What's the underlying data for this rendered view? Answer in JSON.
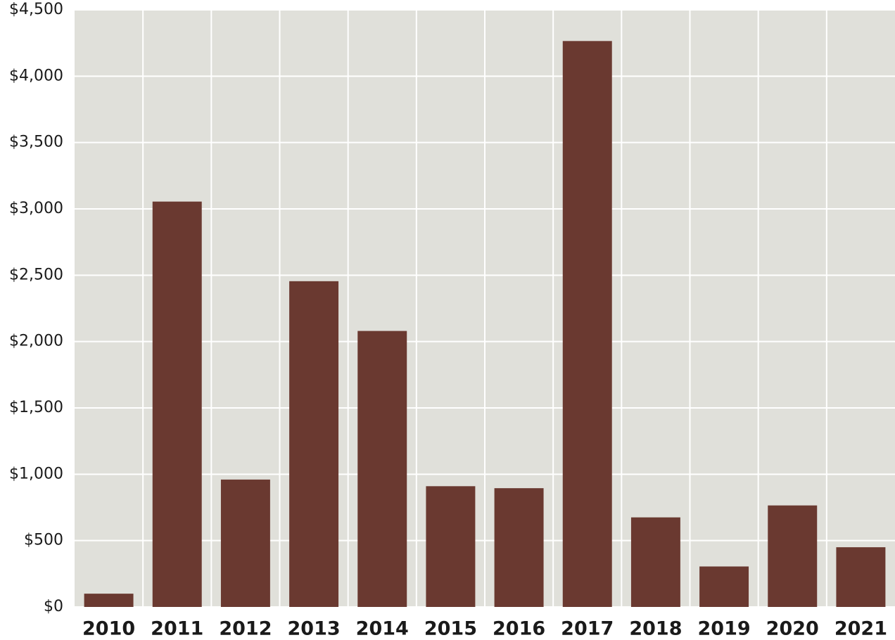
{
  "chart_data": {
    "type": "bar",
    "title": "",
    "xlabel": "",
    "ylabel": "",
    "categories": [
      "2010",
      "2011",
      "2012",
      "2013",
      "2014",
      "2015",
      "2016",
      "2017",
      "2018",
      "2019",
      "2020",
      "2021"
    ],
    "values": [
      100,
      3055,
      960,
      2455,
      2080,
      910,
      895,
      4265,
      675,
      305,
      765,
      450
    ],
    "ylim": [
      0,
      4500
    ],
    "y_ticks": [
      0,
      500,
      1000,
      1500,
      2000,
      2500,
      3000,
      3500,
      4000,
      4500
    ],
    "y_tick_labels": [
      "$0",
      "$500",
      "$1,000",
      "$1,500",
      "$2,000",
      "$2,500",
      "$3,000",
      "$3,500",
      "$4,000",
      "$4,500"
    ],
    "grid": true,
    "legend": "none",
    "colors": {
      "bar": "#6a3930",
      "plot_background": "#e0e0da",
      "grid": "#ffffff"
    }
  }
}
